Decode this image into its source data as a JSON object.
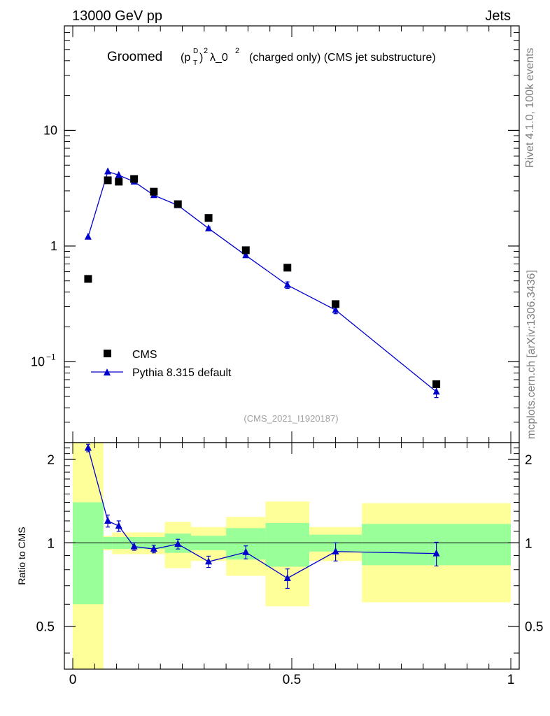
{
  "header": {
    "left": "13000 GeV pp",
    "right": "Jets"
  },
  "title": {
    "prefix": "Groomed",
    "main_obs": "(p",
    "sup_D": "D",
    "sub_T": "T",
    "pow2": "2",
    "lambda": "λ_0",
    "lambda_pow": "2",
    "rest": "(charged only) (CMS jet substructure)"
  },
  "side": {
    "rivet": "Rivet 4.1.0,  100k events",
    "mcplots": "mcplots.cern.ch [arXiv:1306.3436]"
  },
  "reference": "(CMS_2021_I1920187)",
  "legend": {
    "data_label": "CMS",
    "mc_label": "Pythia 8.315 default"
  },
  "colors": {
    "data": "#000000",
    "mc": "#0000cc",
    "band_inner": "#99ff99",
    "band_outer": "#ffff99",
    "side_text": "#808080"
  },
  "chart_data": {
    "type": "scatter",
    "xlim": [
      0,
      1
    ],
    "main_ylim": [
      0.02,
      80
    ],
    "main_yscale": "log",
    "main_yticks": [
      {
        "v": 10,
        "label": "10"
      },
      {
        "v": 1,
        "label": "1"
      },
      {
        "v": 0.1,
        "label": "10",
        "exp": "−1"
      }
    ],
    "ratio_ylim": [
      0.35,
      2.3
    ],
    "ratio_yscale": "log",
    "ratio_ylabel": "Ratio to CMS",
    "ratio_yticks": [
      {
        "v": 2,
        "label": "2"
      },
      {
        "v": 1,
        "label": "1"
      },
      {
        "v": 0.5,
        "label": "0.5"
      }
    ],
    "xticks": [
      {
        "v": 0,
        "label": "0"
      },
      {
        "v": 0.5,
        "label": "0.5"
      },
      {
        "v": 1,
        "label": "1"
      }
    ],
    "bins": [
      {
        "lo": 0.0,
        "hi": 0.07
      },
      {
        "lo": 0.07,
        "hi": 0.09
      },
      {
        "lo": 0.09,
        "hi": 0.12
      },
      {
        "lo": 0.12,
        "hi": 0.16
      },
      {
        "lo": 0.16,
        "hi": 0.21
      },
      {
        "lo": 0.21,
        "hi": 0.27
      },
      {
        "lo": 0.27,
        "hi": 0.35
      },
      {
        "lo": 0.35,
        "hi": 0.44
      },
      {
        "lo": 0.44,
        "hi": 0.54
      },
      {
        "lo": 0.54,
        "hi": 0.66
      },
      {
        "lo": 0.66,
        "hi": 1.0
      }
    ],
    "series": [
      {
        "name": "CMS",
        "x": [
          0.035,
          0.08,
          0.105,
          0.14,
          0.185,
          0.24,
          0.31,
          0.395,
          0.49,
          0.6,
          0.83
        ],
        "y": [
          0.52,
          3.7,
          3.6,
          3.8,
          2.95,
          2.3,
          1.75,
          0.92,
          0.65,
          0.315,
          0.064
        ],
        "err_inner": [
          0.4,
          0.05,
          0.05,
          0.05,
          0.05,
          0.08,
          0.06,
          0.13,
          0.18,
          0.07,
          0.17
        ],
        "err_outer": [
          1.4,
          0.06,
          0.09,
          0.09,
          0.09,
          0.19,
          0.14,
          0.24,
          0.41,
          0.14,
          0.39
        ]
      },
      {
        "name": "Pythia 8.315 default",
        "x": [
          0.035,
          0.08,
          0.105,
          0.14,
          0.185,
          0.24,
          0.31,
          0.395,
          0.49,
          0.6,
          0.83
        ],
        "y": [
          1.2,
          4.4,
          4.1,
          3.6,
          2.75,
          2.25,
          1.42,
          0.83,
          0.46,
          0.28,
          0.055
        ],
        "yerr": [
          0.03,
          0.12,
          0.1,
          0.08,
          0.06,
          0.05,
          0.04,
          0.03,
          0.03,
          0.02,
          0.006
        ],
        "ratio": [
          2.2,
          1.2,
          1.15,
          0.97,
          0.95,
          0.99,
          0.855,
          0.925,
          0.745,
          0.93,
          0.915
        ],
        "ratio_err": [
          0.07,
          0.06,
          0.05,
          0.03,
          0.03,
          0.04,
          0.04,
          0.05,
          0.06,
          0.07,
          0.09
        ]
      }
    ]
  }
}
